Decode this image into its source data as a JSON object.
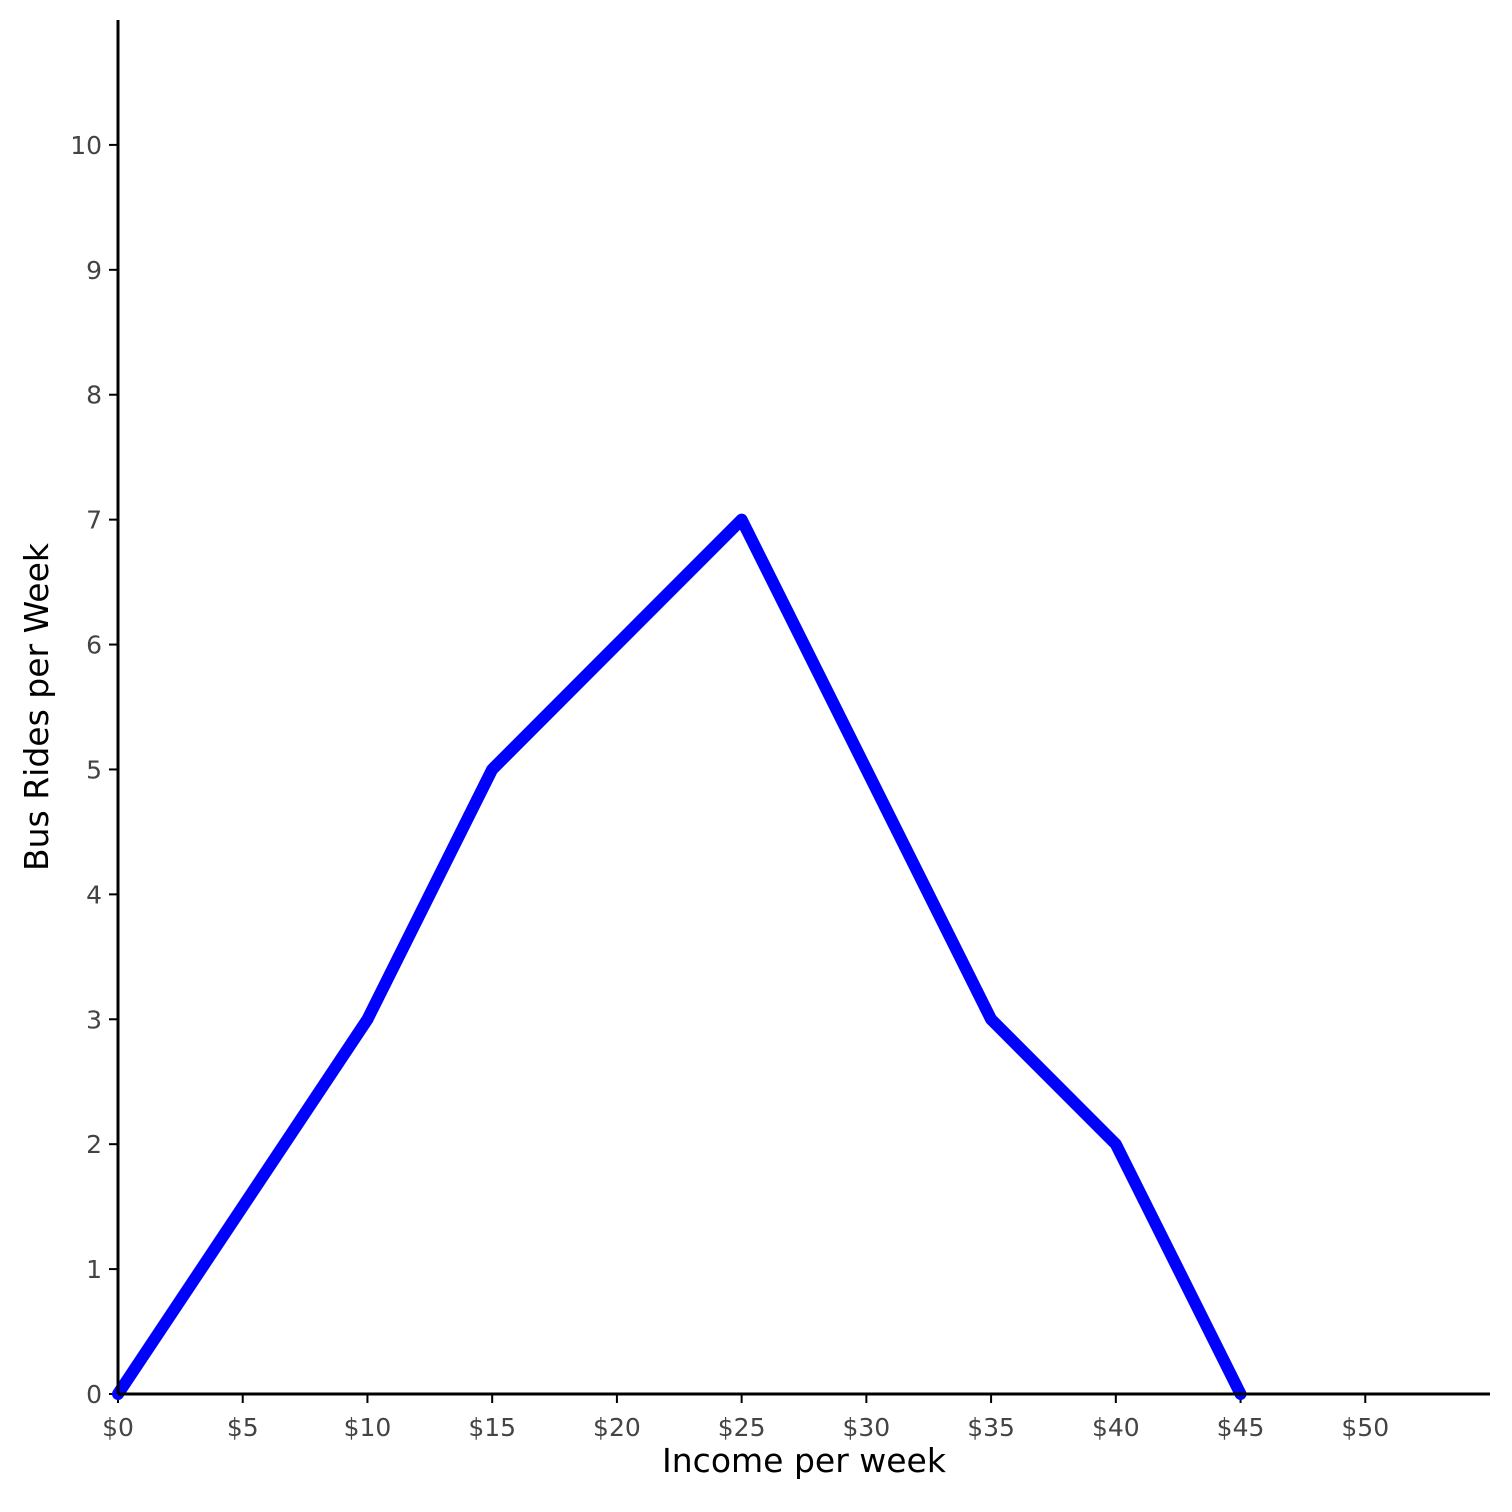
{
  "chart_data": {
    "type": "line",
    "x_label": "Income per week",
    "y_label": "Bus Rides per Week",
    "x": [
      0,
      10,
      15,
      20,
      25,
      30,
      35,
      40,
      45
    ],
    "series": [
      {
        "color": "#0000ff",
        "values": [
          0,
          3,
          5,
          6,
          7,
          5,
          3,
          2,
          0
        ]
      }
    ],
    "xlim": [
      0,
      55
    ],
    "xticks": [
      {
        "value": 0,
        "label": "$0"
      },
      {
        "value": 5,
        "label": "$5"
      },
      {
        "value": 10,
        "label": "$10"
      },
      {
        "value": 15,
        "label": "$15"
      },
      {
        "value": 20,
        "label": "$20"
      },
      {
        "value": 25,
        "label": "$25"
      },
      {
        "value": 30,
        "label": "$30"
      },
      {
        "value": 35,
        "label": "$35"
      },
      {
        "value": 40,
        "label": "$40"
      },
      {
        "value": 45,
        "label": "$45"
      },
      {
        "value": 50,
        "label": "$50"
      }
    ],
    "ylim": [
      0,
      11
    ],
    "yticks": [
      0,
      1,
      2,
      3,
      4,
      5,
      6,
      7,
      8,
      9,
      10
    ],
    "grid": false
  }
}
